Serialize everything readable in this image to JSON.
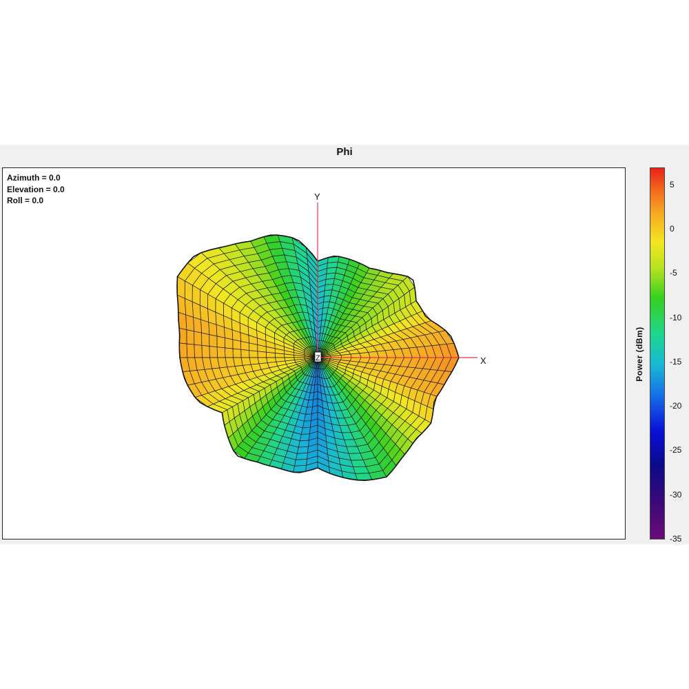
{
  "title": "Phi",
  "view": {
    "azimuth": "Azimuth = 0.0",
    "elevation": "Elevation = 0.0",
    "roll": "Roll = 0.0"
  },
  "axes": {
    "x": "X",
    "y": "Y",
    "z": "Z"
  },
  "colorbar": {
    "label": "Power  (dBm)",
    "ticks": [
      "5",
      "0",
      "-5",
      "-10",
      "-15",
      "-20",
      "-25",
      "-30",
      "-35"
    ],
    "range": [
      -35,
      7
    ]
  },
  "chart_data": {
    "type": "heatmap",
    "title": "Phi",
    "description_kind": "3D radiation pattern surface, top view",
    "colorbar_label": "Power  (dBm)",
    "colorbar_ticks": [
      5,
      0,
      -5,
      -10,
      -15,
      -20,
      -25,
      -30,
      -35
    ],
    "value_range": [
      -35,
      7
    ],
    "view_angles": {
      "azimuth": 0.0,
      "elevation": 0.0,
      "roll": 0.0
    },
    "axis_labels": [
      "X",
      "Y",
      "Z"
    ],
    "pattern_power_dbm_by_angle": {
      "angles_deg": [
        0,
        15,
        30,
        45,
        60,
        75,
        90,
        105,
        120,
        135,
        150,
        165,
        180,
        195,
        210,
        225,
        240,
        255,
        270,
        285,
        300,
        315,
        330,
        345
      ],
      "power_dbm": [
        3,
        1,
        -3,
        -4,
        -6,
        -10,
        -14,
        -10,
        -5,
        -2,
        0,
        2,
        2,
        1,
        -2,
        -6,
        -10,
        -14,
        -16,
        -13,
        -9,
        -5,
        -1,
        2
      ]
    }
  }
}
